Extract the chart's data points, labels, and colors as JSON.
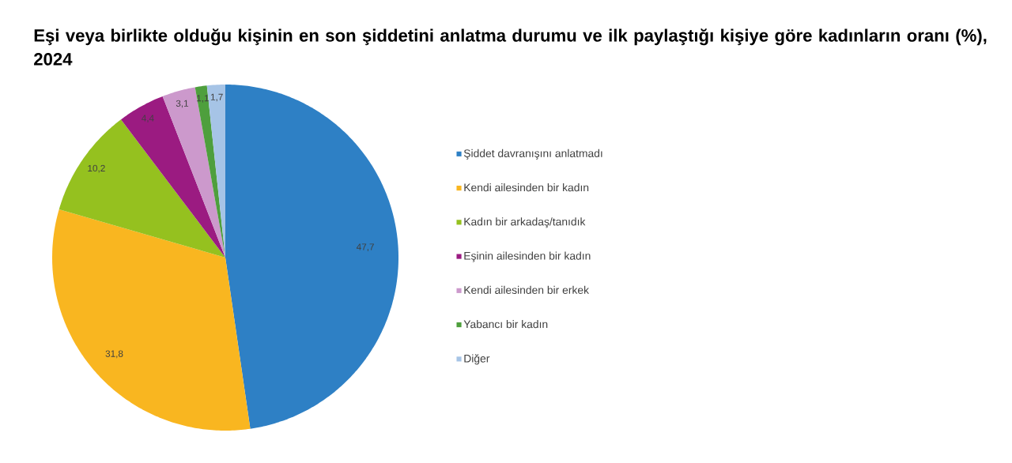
{
  "chart_data": {
    "type": "pie",
    "title": "Eşi veya birlikte olduğu kişinin en son şiddetini anlatma durumu ve ilk paylaştığı kişiye göre kadınların oranı (%), 2024",
    "categories": [
      "Şiddet davranışını anlatmadı",
      "Kendi ailesinden bir kadın",
      "Kadın bir arkadaş/tanıdık",
      "Eşinin ailesinden bir kadın",
      "Kendi ailesinden bir erkek",
      "Yabancı bir kadın",
      "Diğer"
    ],
    "values": [
      47.7,
      31.8,
      10.2,
      4.4,
      3.1,
      1.1,
      1.7
    ],
    "colors": [
      "#2e80c5",
      "#f9b620",
      "#95c11f",
      "#9b1b81",
      "#cc99cc",
      "#4e9f3d",
      "#a6c4e6"
    ],
    "value_labels": [
      "47,7",
      "31,8",
      "10,2",
      "4,4",
      "3,1",
      "1,1",
      "1,7"
    ],
    "legend": "right"
  }
}
